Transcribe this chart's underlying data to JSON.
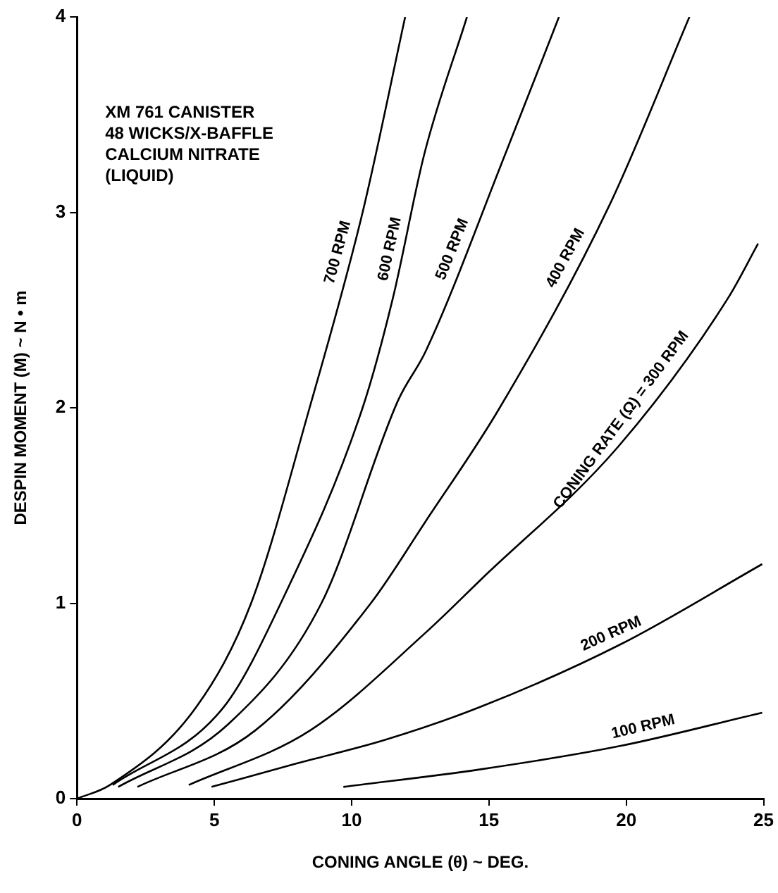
{
  "chart_data": {
    "type": "line",
    "xlabel": "CONING ANGLE (θ) ~ DEG.",
    "ylabel": "DESPIN MOMENT (M) ~ N • m",
    "annotations": [
      "XM 761 CANISTER",
      "48 WICKS/X-BAFFLE",
      "CALCIUM NITRATE",
      "(LIQUID)"
    ],
    "xlim": [
      0,
      25
    ],
    "xticks": [
      0,
      5,
      10,
      15,
      20,
      25
    ],
    "ylim": [
      0,
      4
    ],
    "yticks": [
      0,
      1,
      2,
      3,
      4
    ],
    "marker": "none",
    "legend": false,
    "series": [
      {
        "name": "700 RPM",
        "color": "#000000",
        "x": [
          0,
          1.2,
          4.35,
          6.34,
          8.47,
          10.4,
          11.95
        ],
        "values": [
          0,
          0.07,
          0.47,
          1,
          2,
          3,
          4
        ]
      },
      {
        "name": "600 RPM",
        "color": "#000000",
        "x": [
          1.3,
          5.35,
          7.42,
          10.4,
          11.5,
          12.65,
          14.2
        ],
        "values": [
          0.07,
          0.47,
          1,
          2,
          2.56,
          3.3,
          4
        ]
      },
      {
        "name": "500 RPM",
        "color": "#000000",
        "x": [
          1.5,
          5.5,
          8.9,
          11.7,
          12.7,
          15.6,
          17.55
        ],
        "values": [
          0.06,
          0.38,
          1,
          2.04,
          2.29,
          3.3,
          4
        ]
      },
      {
        "name": "400 RPM",
        "color": "#000000",
        "x": [
          2.2,
          6.5,
          10.7,
          12.7,
          15.35,
          19.4,
          22.3
        ],
        "values": [
          0.06,
          0.35,
          1,
          1.42,
          1.99,
          3.04,
          4
        ]
      },
      {
        "name": "CONING RATE (Ω) = 300 RPM",
        "color": "#000000",
        "x": [
          4.07,
          8.5,
          12.7,
          14.7,
          19.7,
          23.7,
          24.8
        ],
        "values": [
          0.07,
          0.35,
          0.85,
          1.12,
          1.8,
          2.56,
          2.84
        ]
      },
      {
        "name": "200 RPM",
        "color": "#000000",
        "x": [
          4.9,
          8,
          11.2,
          14.7,
          19.8,
          24.95
        ],
        "values": [
          0.06,
          0.18,
          0.3,
          0.47,
          0.79,
          1.2
        ]
      },
      {
        "name": "100 RPM",
        "color": "#000000",
        "x": [
          9.7,
          14.7,
          19.8,
          24.95
        ],
        "values": [
          0.06,
          0.15,
          0.27,
          0.44
        ]
      }
    ]
  }
}
